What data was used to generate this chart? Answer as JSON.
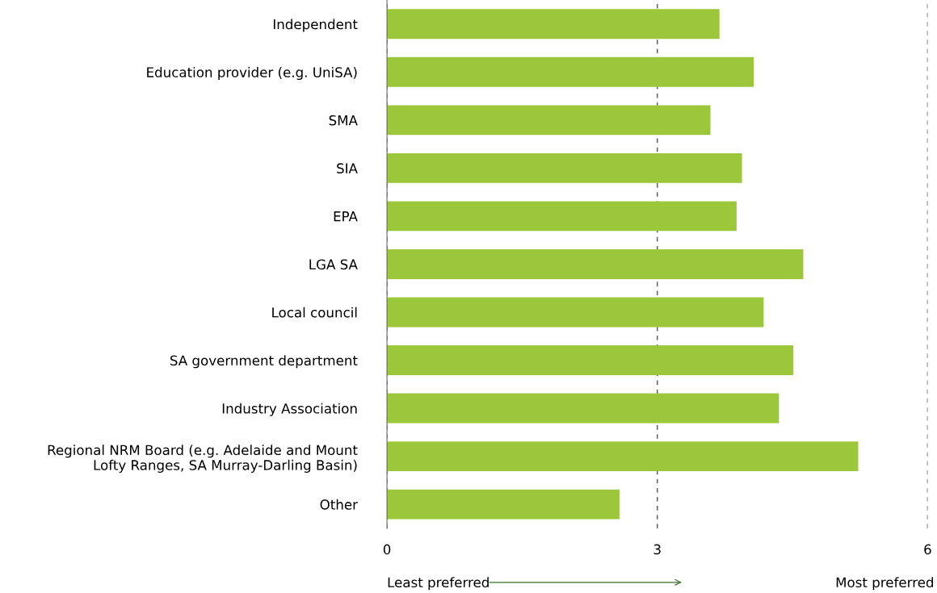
{
  "chart_data": {
    "type": "bar",
    "orientation": "horizontal",
    "categories": [
      "Independent",
      "Education provider (e.g. UniSA)",
      "SMA",
      "SIA",
      "EPA",
      "LGA SA",
      "Local council",
      "SA government department",
      "Industry Association",
      "Regional NRM Board (e.g. Adelaide and Mount\nLofty Ranges, SA Murray-Darling Basin)",
      "Other"
    ],
    "values": [
      3.69,
      4.07,
      3.59,
      3.94,
      3.88,
      4.62,
      4.18,
      4.51,
      4.35,
      5.23,
      2.58
    ],
    "color": "#9dc73b",
    "xlim": [
      0,
      6
    ],
    "xticks": [
      0,
      3,
      6
    ],
    "grid": "x",
    "annotations": [
      "Least preferred",
      "Most preferred"
    ]
  }
}
